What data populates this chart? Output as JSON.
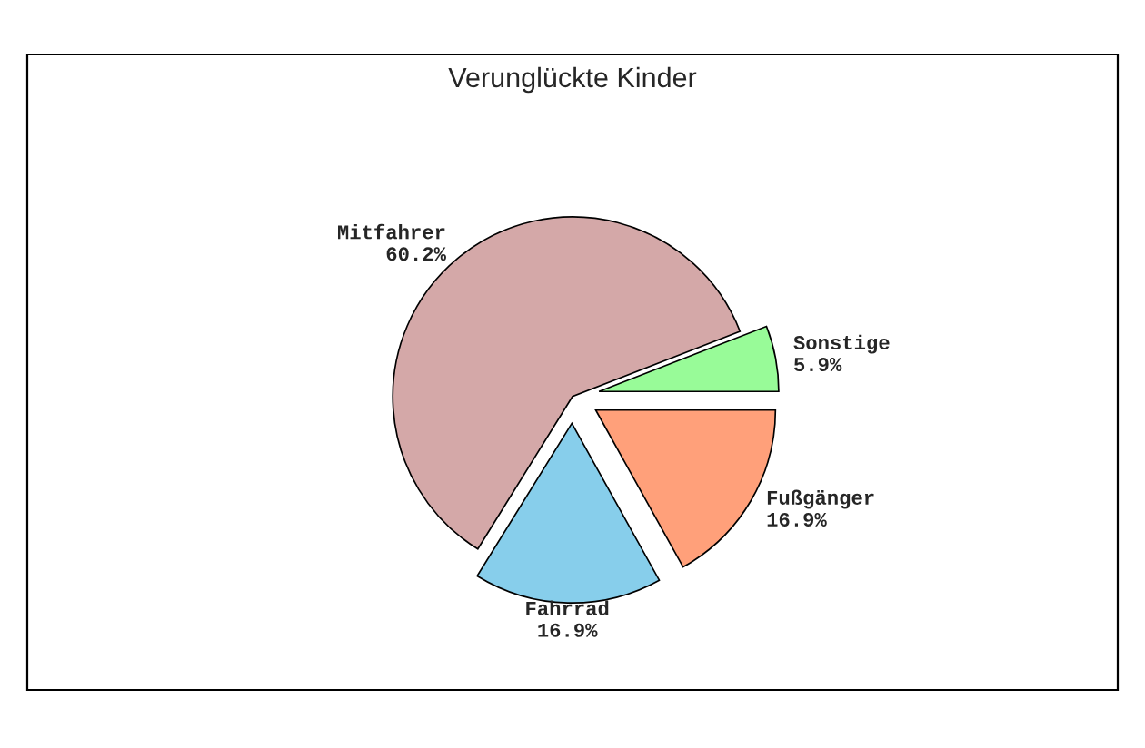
{
  "chart_data": {
    "type": "pie",
    "title": "Verunglückte Kinder",
    "categories": [
      "Sonstige",
      "Mitfahrer",
      "Fahrrad",
      "Fußgänger"
    ],
    "values": [
      5.9,
      60.2,
      16.9,
      16.9
    ],
    "value_labels": [
      "5.9%",
      "60.2%",
      "16.9%",
      "16.9%"
    ],
    "colors": [
      "#98fb98",
      "#d4a8a8",
      "#87ceeb",
      "#ffa07a"
    ],
    "legend": false
  }
}
